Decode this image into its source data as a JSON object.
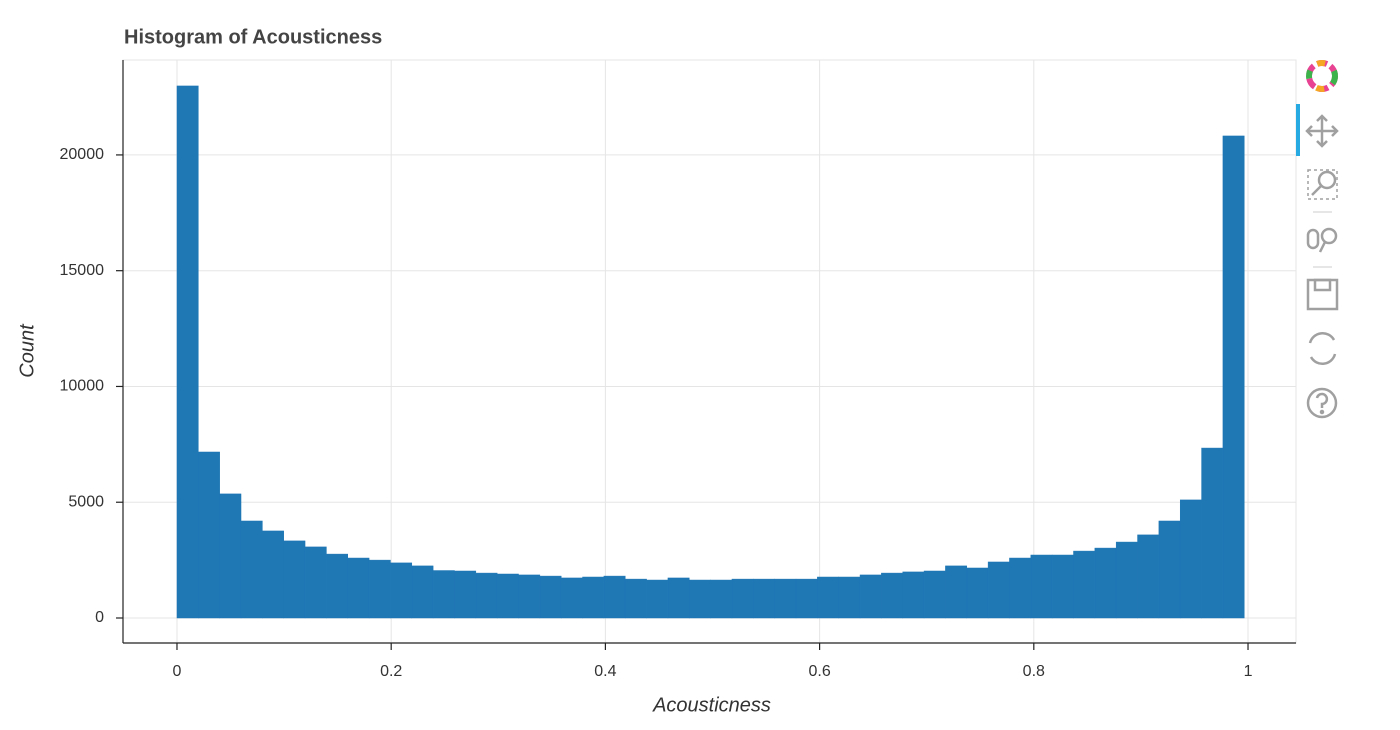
{
  "chart_data": {
    "type": "histogram",
    "title": "Histogram of Acousticness",
    "x_label": "Acousticness",
    "y_label": "Count",
    "color": "#1f77b4",
    "grid": true,
    "bins": [
      0,
      0.01993,
      0.03986,
      0.05979,
      0.07972,
      0.09965,
      0.11958,
      0.13951,
      0.15944,
      0.17937,
      0.1993,
      0.21923,
      0.23916,
      0.25909,
      0.27902,
      0.29895,
      0.31888,
      0.33881,
      0.35874,
      0.37867,
      0.3986,
      0.41853,
      0.43846,
      0.45839,
      0.47832,
      0.49825,
      0.51818,
      0.53811,
      0.55804,
      0.57797,
      0.5979,
      0.61783,
      0.63776,
      0.65769,
      0.67762,
      0.69755,
      0.71748,
      0.73741,
      0.75734,
      0.77727,
      0.7972,
      0.81713,
      0.83706,
      0.85699,
      0.87692,
      0.89685,
      0.91678,
      0.93671,
      0.95664,
      0.97657,
      0.9965
    ],
    "counts": [
      22980,
      7170,
      5360,
      4190,
      3760,
      3330,
      3070,
      2760,
      2590,
      2500,
      2380,
      2250,
      2050,
      2030,
      1940,
      1900,
      1860,
      1810,
      1730,
      1770,
      1810,
      1680,
      1640,
      1730,
      1640,
      1640,
      1680,
      1680,
      1680,
      1680,
      1770,
      1770,
      1860,
      1940,
      1990,
      2030,
      2250,
      2160,
      2420,
      2590,
      2720,
      2720,
      2890,
      3020,
      3280,
      3590,
      4190,
      5100,
      7340,
      20820
    ],
    "xlim": [
      -0.0504,
      1.0448
    ],
    "ylim": [
      -1080,
      24100
    ],
    "xticks": [
      0,
      0.2,
      0.4,
      0.6,
      0.8,
      1
    ],
    "yticks": [
      0,
      5000,
      10000,
      15000,
      20000
    ]
  }
}
